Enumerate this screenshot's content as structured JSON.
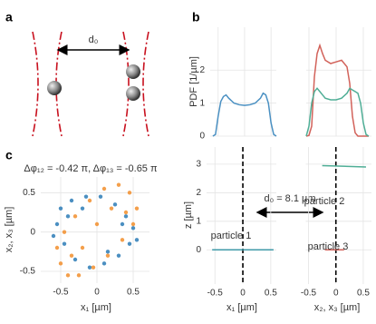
{
  "panel_labels": [
    "a",
    "b",
    "c"
  ],
  "diagram": {
    "distance_label": "d₀"
  },
  "chart_data": [
    {
      "type": "line",
      "ylabel": "PDF [1/µm]",
      "x": [
        -0.6,
        -0.55,
        -0.5,
        -0.45,
        -0.4,
        -0.35,
        -0.3,
        -0.2,
        -0.1,
        0,
        0.1,
        0.2,
        0.3,
        0.35,
        0.4,
        0.45,
        0.5,
        0.55,
        0.6
      ],
      "series": [
        {
          "color": "#4a90c2",
          "values": [
            0,
            0.05,
            0.6,
            1.05,
            1.2,
            1.25,
            1.15,
            1.0,
            0.95,
            0.93,
            0.95,
            1.0,
            1.15,
            1.3,
            1.25,
            1.0,
            0.4,
            0.05,
            0
          ]
        }
      ],
      "xlim": [
        -0.65,
        0.6
      ],
      "ylim": [
        0,
        3.3
      ],
      "xticks": [
        -0.5,
        0,
        0.5
      ],
      "yticks": [
        0,
        1,
        2
      ],
      "grid": true
    },
    {
      "type": "line",
      "x": [
        -0.55,
        -0.5,
        -0.45,
        -0.4,
        -0.35,
        -0.3,
        -0.25,
        -0.2,
        -0.1,
        0,
        0.1,
        0.2,
        0.25,
        0.3,
        0.35,
        0.4,
        0.45,
        0.5,
        0.55,
        0.6
      ],
      "series": [
        {
          "color": "#d2625a",
          "values": [
            0,
            0.02,
            0.3,
            1.8,
            2.5,
            2.75,
            2.5,
            2.3,
            2.2,
            2.25,
            2.3,
            2.1,
            1.6,
            0.6,
            0.1,
            0,
            0,
            0,
            0,
            0
          ]
        },
        {
          "color": "#4fae96",
          "values": [
            0,
            0.3,
            1.0,
            1.35,
            1.45,
            1.35,
            1.25,
            1.15,
            1.1,
            1.1,
            1.15,
            1.3,
            1.45,
            1.4,
            1.35,
            1.3,
            1.0,
            0.4,
            0.05,
            0
          ]
        }
      ],
      "xlim": [
        -0.55,
        0.65
      ],
      "ylim": [
        0,
        3.3
      ],
      "xticks": [
        -0.5,
        0,
        0.5
      ],
      "yticks": [
        0,
        1,
        2
      ],
      "grid": true
    },
    {
      "type": "line",
      "xlabel": "x₁ [µm]",
      "ylabel": "z [µm]",
      "series": [
        {
          "color": "#3f9aa8",
          "x": [
            -0.55,
            0.55
          ],
          "values": [
            0,
            0
          ]
        }
      ],
      "vline": 0,
      "annotations": [
        {
          "text": "particle 1"
        },
        {
          "text": "d₀ = 8.1 µm"
        }
      ],
      "xlim": [
        -0.65,
        0.6
      ],
      "ylim": [
        -1.2,
        3.6
      ],
      "xticks": [
        -0.5,
        0,
        0.5
      ],
      "yticks": [
        0,
        1,
        2,
        3
      ],
      "grid": true
    },
    {
      "type": "line",
      "xlabel": "x₂, x₃ [µm]",
      "series": [
        {
          "color": "#4fae96",
          "x": [
            -0.25,
            0.55
          ],
          "values": [
            2.95,
            2.9
          ]
        },
        {
          "color": "#d2625a",
          "x": [
            -0.2,
            0.15
          ],
          "values": [
            0,
            0
          ]
        }
      ],
      "vline": 0,
      "annotations": [
        {
          "text": "particle 2"
        },
        {
          "text": "particle 3"
        }
      ],
      "xlim": [
        -0.55,
        0.65
      ],
      "ylim": [
        -1.2,
        3.6
      ],
      "xticks": [
        -0.5,
        0,
        0.5
      ],
      "yticks": [
        0,
        1,
        2,
        3
      ],
      "grid": true
    },
    {
      "type": "scatter",
      "title": "Δφ₁₂ = -0.42 π, Δφ₁₃ = -0.65 π",
      "xlabel": "x₁ [µm]",
      "ylabel": "x₂, x₃ [µm]",
      "series": [
        {
          "color": "#2c7bb6",
          "x": [
            -0.55,
            -0.5,
            -0.35,
            -0.15,
            0.05,
            0.25,
            0.4,
            0.5,
            0.45,
            0.3,
            0.1,
            -0.1,
            -0.3,
            -0.45,
            -0.6,
            -0.4,
            0.35,
            0.15,
            -0.2,
            0.55
          ],
          "values": [
            0.1,
            0.3,
            0.4,
            0.45,
            0.45,
            0.35,
            0.2,
            0.05,
            -0.15,
            -0.3,
            -0.4,
            -0.45,
            -0.35,
            -0.15,
            -0.05,
            0.2,
            0.1,
            -0.25,
            0.3,
            -0.1
          ]
        },
        {
          "color": "#f28e2b",
          "x": [
            -0.5,
            -0.55,
            -0.45,
            -0.3,
            -0.1,
            0.1,
            0.3,
            0.45,
            0.55,
            0.5,
            0.35,
            0.15,
            -0.05,
            -0.25,
            -0.4,
            -0.2,
            0.2,
            0.4,
            -0.35,
            0.0
          ],
          "values": [
            -0.4,
            -0.2,
            0.0,
            0.2,
            0.4,
            0.55,
            0.6,
            0.5,
            0.3,
            0.1,
            -0.1,
            -0.3,
            -0.45,
            -0.55,
            -0.55,
            -0.2,
            0.3,
            0.25,
            -0.3,
            0.1
          ]
        }
      ],
      "xlim": [
        -0.775,
        0.725
      ],
      "ylim": [
        -0.65,
        0.7
      ],
      "xticks": [
        -0.5,
        0,
        0.5
      ],
      "yticks": [
        -0.5,
        0,
        0.5
      ],
      "grid": true
    }
  ]
}
